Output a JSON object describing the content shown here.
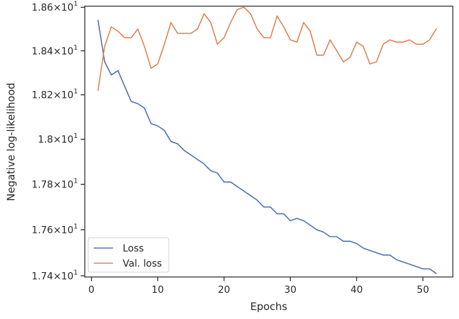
{
  "chart_data": {
    "type": "line",
    "xlabel": "Epochs",
    "ylabel": "Negative log-likelihood",
    "xlim": [
      -1,
      54.5
    ],
    "ylim": [
      17.395,
      18.605
    ],
    "yscale": "log",
    "x_ticks": [
      0,
      10,
      20,
      30,
      40,
      50
    ],
    "x_tick_labels": [
      "0",
      "10",
      "20",
      "30",
      "40",
      "50"
    ],
    "y_ticks": [
      17.4,
      17.6,
      17.8,
      18.0,
      18.2,
      18.4,
      18.6
    ],
    "y_tick_labels": [
      {
        "mant": "1.74",
        "exp": "1"
      },
      {
        "mant": "1.76",
        "exp": "1"
      },
      {
        "mant": "1.78",
        "exp": "1"
      },
      {
        "mant": "1.8",
        "exp": "1"
      },
      {
        "mant": "1.82",
        "exp": "1"
      },
      {
        "mant": "1.84",
        "exp": "1"
      },
      {
        "mant": "1.86",
        "exp": "1"
      }
    ],
    "grid": false,
    "legend_position": "lower-left",
    "x": [
      1,
      2,
      3,
      4,
      5,
      6,
      7,
      8,
      9,
      10,
      11,
      12,
      13,
      14,
      15,
      16,
      17,
      18,
      19,
      20,
      21,
      22,
      23,
      24,
      25,
      26,
      27,
      28,
      29,
      30,
      31,
      32,
      33,
      34,
      35,
      36,
      37,
      38,
      39,
      40,
      41,
      42,
      43,
      44,
      45,
      46,
      47,
      48,
      49,
      50,
      51,
      52
    ],
    "series": [
      {
        "name": "Loss",
        "color": "#4c72b0",
        "values": [
          18.54,
          18.35,
          18.29,
          18.31,
          18.24,
          18.17,
          18.16,
          18.14,
          18.07,
          18.06,
          18.04,
          17.99,
          17.98,
          17.95,
          17.93,
          17.91,
          17.89,
          17.86,
          17.85,
          17.81,
          17.81,
          17.79,
          17.77,
          17.75,
          17.73,
          17.7,
          17.7,
          17.67,
          17.67,
          17.64,
          17.65,
          17.64,
          17.62,
          17.6,
          17.59,
          17.57,
          17.57,
          17.55,
          17.55,
          17.54,
          17.52,
          17.51,
          17.5,
          17.49,
          17.49,
          17.47,
          17.46,
          17.45,
          17.44,
          17.43,
          17.43,
          17.41
        ]
      },
      {
        "name": "Val. loss",
        "color": "#dd8452",
        "values": [
          18.22,
          18.42,
          18.51,
          18.49,
          18.46,
          18.46,
          18.5,
          18.42,
          18.32,
          18.34,
          18.43,
          18.53,
          18.48,
          18.48,
          18.48,
          18.5,
          18.57,
          18.53,
          18.43,
          18.46,
          18.53,
          18.59,
          18.6,
          18.57,
          18.5,
          18.46,
          18.46,
          18.56,
          18.51,
          18.45,
          18.44,
          18.53,
          18.49,
          18.38,
          18.38,
          18.45,
          18.4,
          18.35,
          18.37,
          18.44,
          18.42,
          18.34,
          18.35,
          18.43,
          18.45,
          18.44,
          18.44,
          18.45,
          18.43,
          18.43,
          18.45,
          18.5
        ]
      }
    ]
  }
}
